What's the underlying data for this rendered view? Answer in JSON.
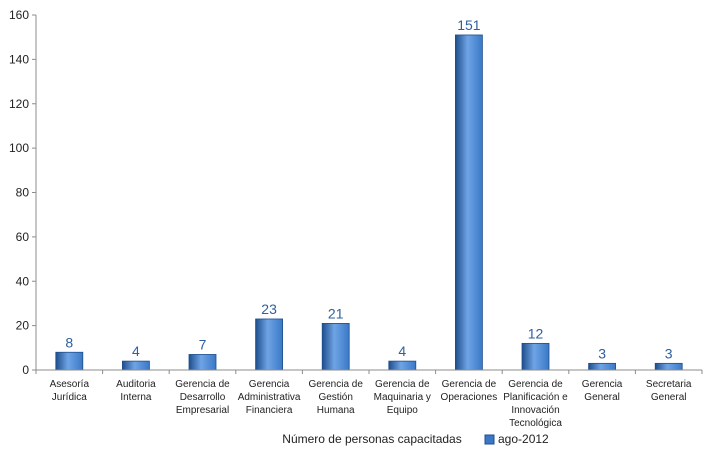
{
  "chart_data": {
    "type": "bar",
    "categories": [
      [
        "Asesoría",
        "Jurídica"
      ],
      [
        "Auditoria",
        "Interna"
      ],
      [
        "Gerencia de",
        "Desarrollo",
        "Empresarial"
      ],
      [
        "Gerencia",
        "Administrativa",
        "Financiera"
      ],
      [
        "Gerencia de",
        "Gestión",
        "Humana"
      ],
      [
        "Gerencia de",
        "Maquinaria y",
        "Equipo"
      ],
      [
        "Gerencia de",
        "Operaciones"
      ],
      [
        "Gerencia de",
        "Planificación e",
        "Innovación",
        "Tecnológica"
      ],
      [
        "Gerencia",
        "General"
      ],
      [
        "Secretaria",
        "General"
      ]
    ],
    "series": [
      {
        "name": "ago-2012",
        "values": [
          8,
          4,
          7,
          23,
          21,
          4,
          151,
          12,
          3,
          3
        ]
      }
    ],
    "ylim": [
      0,
      160
    ],
    "yticks": [
      0,
      20,
      40,
      60,
      80,
      100,
      120,
      140,
      160
    ],
    "ytick_labels": [
      "0",
      "20",
      "40",
      "60",
      "80",
      "100",
      "120",
      "140",
      "160"
    ],
    "data_labels": [
      "8",
      "4",
      "7",
      "23",
      "21",
      "4",
      "151",
      "12",
      "3",
      "3"
    ],
    "xlabel": "Número de personas capacitadas",
    "ylabel": "",
    "legend_position": "bottom",
    "grid": false
  },
  "colors": {
    "bar_fill": "#3a78c6",
    "bar_highlight": "#6fa4e6",
    "bar_edge": "#1f4e8c",
    "data_label": "#2e5f9e",
    "axis": "#8c8c8c"
  }
}
